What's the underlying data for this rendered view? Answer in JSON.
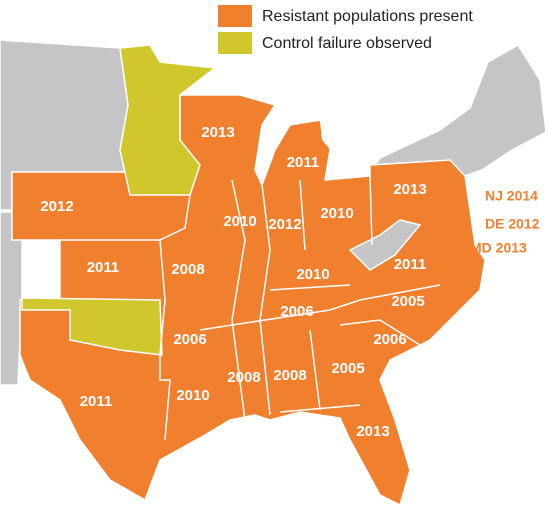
{
  "legend": [
    {
      "label": "Resistant populations present",
      "color": "#f07f2e"
    },
    {
      "label": "Control failure observed",
      "color": "#cfc72b"
    }
  ],
  "labels": [
    {
      "text": "2013",
      "region": "WI"
    },
    {
      "text": "2011",
      "region": "MI"
    },
    {
      "text": "2012",
      "region": "NE"
    },
    {
      "text": "2010",
      "region": "IL"
    },
    {
      "text": "2012",
      "region": "IN"
    },
    {
      "text": "2010",
      "region": "OH"
    },
    {
      "text": "2013",
      "region": "PA"
    },
    {
      "text": "2011",
      "region": "KS"
    },
    {
      "text": "2008",
      "region": "MO"
    },
    {
      "text": "2010",
      "region": "KY"
    },
    {
      "text": "2011",
      "region": "VA"
    },
    {
      "text": "2005",
      "region": "NC"
    },
    {
      "text": "2006",
      "region": "TN"
    },
    {
      "text": "2006",
      "region": "AR"
    },
    {
      "text": "2006",
      "region": "SC"
    },
    {
      "text": "2008",
      "region": "MS"
    },
    {
      "text": "2008",
      "region": "AL"
    },
    {
      "text": "2005",
      "region": "GA"
    },
    {
      "text": "2010",
      "region": "LA"
    },
    {
      "text": "2011",
      "region": "TX"
    },
    {
      "text": "2013",
      "region": "FL"
    },
    {
      "text": "NJ 2014",
      "region": "NJ"
    },
    {
      "text": "DE 2012",
      "region": "DE"
    },
    {
      "text": "MD 2013",
      "region": "MD"
    }
  ]
}
